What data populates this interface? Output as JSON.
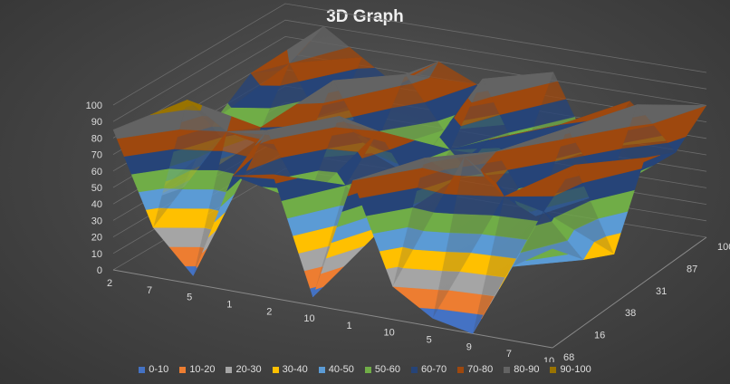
{
  "chart_data": {
    "type": "surface",
    "title": "3D Graph",
    "z_axis": {
      "min": 0,
      "max": 100,
      "ticks": [
        "0",
        "10",
        "20",
        "30",
        "40",
        "50",
        "60",
        "70",
        "80",
        "90",
        "100"
      ]
    },
    "x_labels": [
      "2",
      "7",
      "5",
      "1",
      "2",
      "10",
      "1",
      "10",
      "5",
      "9",
      "7",
      "10"
    ],
    "y_labels": [
      "68",
      "16",
      "38",
      "31",
      "87",
      "100"
    ],
    "z": [
      [
        85,
        30,
        25,
        55,
        70,
        60
      ],
      [
        30,
        95,
        60,
        45,
        80,
        90
      ],
      [
        5,
        80,
        70,
        60,
        40,
        75
      ],
      [
        70,
        85,
        55,
        90,
        65,
        60
      ],
      [
        75,
        45,
        85,
        50,
        85,
        80
      ],
      [
        5,
        60,
        80,
        40,
        55,
        70
      ],
      [
        80,
        40,
        45,
        60,
        90,
        50
      ],
      [
        20,
        85,
        60,
        70,
        45,
        85
      ],
      [
        5,
        90,
        80,
        55,
        70,
        40
      ],
      [
        0,
        70,
        45,
        85,
        60,
        75
      ],
      [
        45,
        65,
        80,
        50,
        90,
        55
      ],
      [
        60,
        40,
        30,
        75,
        65,
        80
      ]
    ],
    "bands": [
      {
        "label": "0-10",
        "color": "#4472c4"
      },
      {
        "label": "10-20",
        "color": "#ed7d31"
      },
      {
        "label": "20-30",
        "color": "#a5a5a5"
      },
      {
        "label": "30-40",
        "color": "#ffc000"
      },
      {
        "label": "40-50",
        "color": "#5b9bd5"
      },
      {
        "label": "50-60",
        "color": "#70ad47"
      },
      {
        "label": "60-70",
        "color": "#264478"
      },
      {
        "label": "70-80",
        "color": "#9e480e"
      },
      {
        "label": "80-90",
        "color": "#636363"
      },
      {
        "label": "90-100",
        "color": "#997300"
      }
    ],
    "legend_position": "bottom",
    "grid": true
  }
}
